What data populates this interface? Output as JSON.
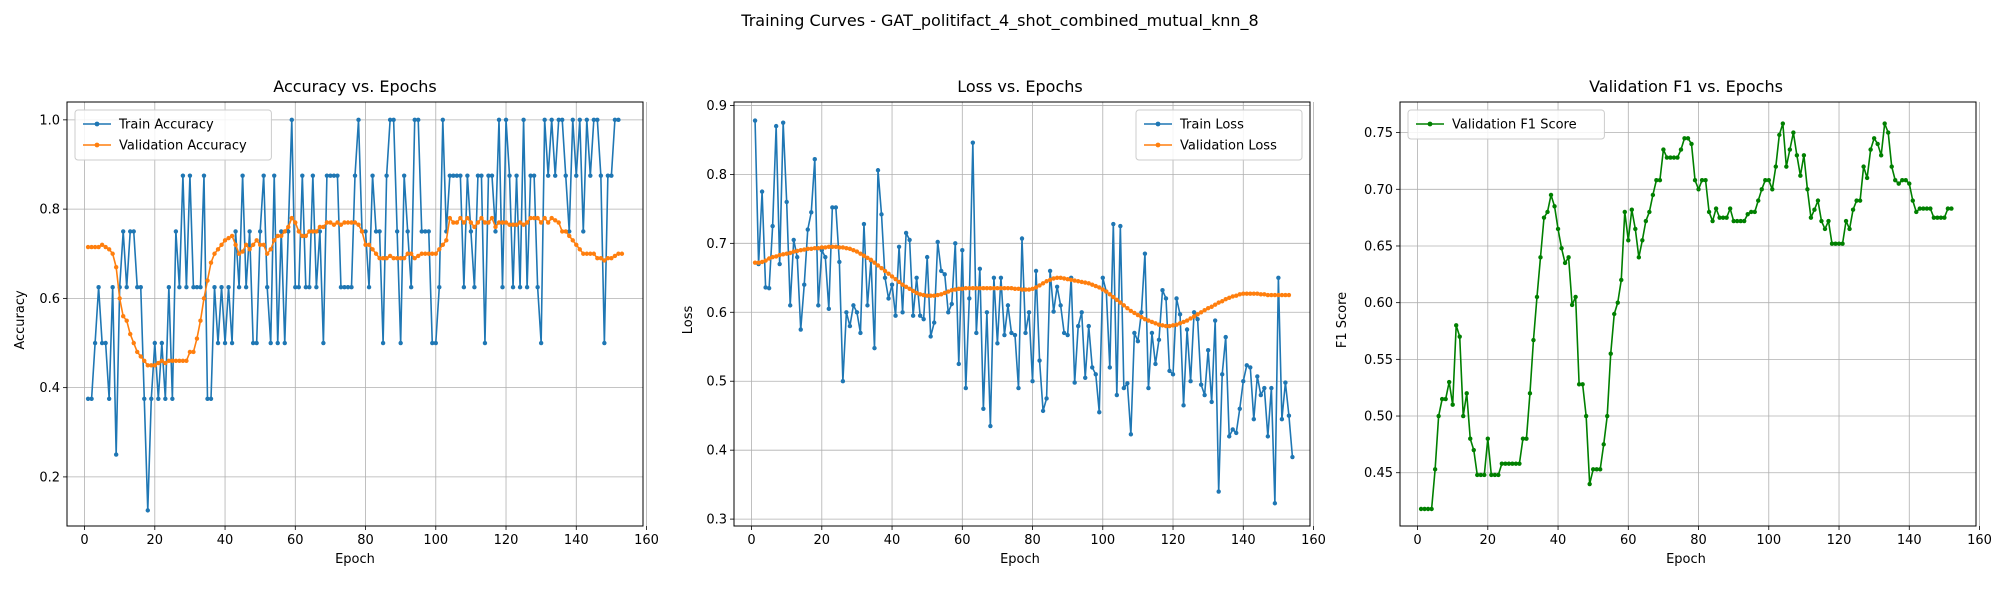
{
  "figure": {
    "suptitle": "Training Curves - GAT_politifact_4_shot_combined_mutual_knn_8"
  },
  "chart_data": [
    {
      "type": "line",
      "title": "Accuracy vs. Epochs",
      "xlabel": "Epoch",
      "ylabel": "Accuracy",
      "xlim": [
        -5,
        159
      ],
      "ylim": [
        0.09,
        1.04
      ],
      "xticks": [
        0,
        20,
        40,
        60,
        80,
        100,
        120,
        140,
        160
      ],
      "yticks": [
        0.2,
        0.4,
        0.6,
        0.8,
        1.0
      ],
      "ytick_labels": [
        "0.2",
        "0.4",
        "0.6",
        "0.8",
        "1.0"
      ],
      "grid": true,
      "legend_position": "upper-left",
      "x_start": 1,
      "series": [
        {
          "name": "Train Accuracy",
          "color": "#1f77b4",
          "values": [
            0.375,
            0.375,
            0.5,
            0.625,
            0.5,
            0.5,
            0.375,
            0.625,
            0.25,
            0.625,
            0.75,
            0.625,
            0.75,
            0.75,
            0.625,
            0.625,
            0.375,
            0.125,
            0.375,
            0.5,
            0.375,
            0.5,
            0.375,
            0.625,
            0.375,
            0.75,
            0.625,
            0.875,
            0.625,
            0.875,
            0.625,
            0.625,
            0.625,
            0.875,
            0.375,
            0.375,
            0.625,
            0.5,
            0.625,
            0.5,
            0.625,
            0.5,
            0.75,
            0.625,
            0.875,
            0.625,
            0.75,
            0.5,
            0.5,
            0.75,
            0.875,
            0.625,
            0.5,
            0.875,
            0.5,
            0.75,
            0.5,
            0.75,
            1.0,
            0.625,
            0.625,
            0.875,
            0.625,
            0.625,
            0.875,
            0.625,
            0.75,
            0.5,
            0.875,
            0.875,
            0.875,
            0.875,
            0.625,
            0.625,
            0.625,
            0.625,
            0.875,
            1.0,
            0.75,
            0.75,
            0.625,
            0.875,
            0.75,
            0.75,
            0.5,
            0.875,
            1.0,
            1.0,
            0.75,
            0.5,
            0.875,
            0.75,
            0.625,
            1.0,
            1.0,
            0.75,
            0.75,
            0.75,
            0.5,
            0.5,
            0.625,
            1.0,
            0.75,
            0.875,
            0.875,
            0.875,
            0.875,
            0.625,
            0.875,
            0.75,
            0.625,
            0.875,
            0.875,
            0.5,
            0.875,
            0.875,
            0.75,
            1.0,
            0.625,
            1.0,
            0.875,
            0.625,
            0.875,
            0.625,
            1.0,
            0.625,
            0.875,
            0.875,
            0.625,
            0.5,
            1.0,
            0.875,
            1.0,
            0.875,
            1.0,
            1.0,
            0.875,
            0.75,
            1.0,
            0.875,
            1.0,
            0.75,
            1.0,
            0.875,
            1.0,
            1.0,
            0.875,
            0.5,
            0.875,
            0.875,
            1.0,
            1.0
          ]
        },
        {
          "name": "Validation Accuracy",
          "color": "#ff7f0e",
          "values": [
            0.715,
            0.715,
            0.715,
            0.715,
            0.72,
            0.715,
            0.71,
            0.7,
            0.67,
            0.6,
            0.56,
            0.55,
            0.52,
            0.5,
            0.48,
            0.47,
            0.46,
            0.45,
            0.45,
            0.45,
            0.455,
            0.46,
            0.455,
            0.46,
            0.46,
            0.46,
            0.46,
            0.46,
            0.46,
            0.48,
            0.48,
            0.51,
            0.55,
            0.6,
            0.64,
            0.68,
            0.7,
            0.71,
            0.72,
            0.73,
            0.735,
            0.74,
            0.72,
            0.7,
            0.705,
            0.72,
            0.71,
            0.72,
            0.73,
            0.72,
            0.72,
            0.7,
            0.71,
            0.73,
            0.74,
            0.74,
            0.75,
            0.76,
            0.78,
            0.77,
            0.75,
            0.74,
            0.74,
            0.75,
            0.75,
            0.75,
            0.76,
            0.76,
            0.77,
            0.77,
            0.765,
            0.77,
            0.765,
            0.77,
            0.77,
            0.77,
            0.77,
            0.765,
            0.75,
            0.72,
            0.72,
            0.71,
            0.7,
            0.69,
            0.69,
            0.69,
            0.695,
            0.69,
            0.69,
            0.69,
            0.69,
            0.7,
            0.7,
            0.69,
            0.695,
            0.7,
            0.7,
            0.7,
            0.7,
            0.7,
            0.71,
            0.72,
            0.73,
            0.78,
            0.77,
            0.77,
            0.78,
            0.77,
            0.78,
            0.77,
            0.76,
            0.77,
            0.78,
            0.77,
            0.77,
            0.78,
            0.76,
            0.77,
            0.77,
            0.77,
            0.765,
            0.765,
            0.765,
            0.77,
            0.765,
            0.77,
            0.78,
            0.78,
            0.78,
            0.77,
            0.78,
            0.77,
            0.78,
            0.775,
            0.77,
            0.75,
            0.75,
            0.74,
            0.73,
            0.72,
            0.71,
            0.7,
            0.7,
            0.7,
            0.7,
            0.69,
            0.69,
            0.685,
            0.69,
            0.69,
            0.695,
            0.7,
            0.7
          ]
        }
      ]
    },
    {
      "type": "line",
      "title": "Loss vs. Epochs",
      "xlabel": "Epoch",
      "ylabel": "Loss",
      "xlim": [
        -5,
        159
      ],
      "ylim": [
        0.29,
        0.905
      ],
      "xticks": [
        0,
        20,
        40,
        60,
        80,
        100,
        120,
        140,
        160
      ],
      "yticks": [
        0.3,
        0.4,
        0.5,
        0.6,
        0.7,
        0.8,
        0.9
      ],
      "ytick_labels": [
        "0.3",
        "0.4",
        "0.5",
        "0.6",
        "0.7",
        "0.8",
        "0.9"
      ],
      "grid": true,
      "legend_position": "upper-right",
      "x_start": 1,
      "series": [
        {
          "name": "Train Loss",
          "color": "#1f77b4",
          "values": [
            0.878,
            0.67,
            0.775,
            0.636,
            0.635,
            0.725,
            0.87,
            0.67,
            0.875,
            0.76,
            0.61,
            0.705,
            0.68,
            0.575,
            0.64,
            0.72,
            0.745,
            0.822,
            0.61,
            0.69,
            0.68,
            0.605,
            0.752,
            0.752,
            0.673,
            0.5,
            0.6,
            0.58,
            0.61,
            0.6,
            0.57,
            0.728,
            0.61,
            0.675,
            0.548,
            0.806,
            0.742,
            0.65,
            0.62,
            0.64,
            0.595,
            0.695,
            0.6,
            0.715,
            0.705,
            0.595,
            0.65,
            0.595,
            0.59,
            0.68,
            0.565,
            0.585,
            0.702,
            0.66,
            0.655,
            0.6,
            0.612,
            0.7,
            0.525,
            0.69,
            0.49,
            0.62,
            0.846,
            0.57,
            0.663,
            0.46,
            0.6,
            0.435,
            0.65,
            0.555,
            0.65,
            0.567,
            0.61,
            0.57,
            0.567,
            0.49,
            0.707,
            0.57,
            0.6,
            0.5,
            0.66,
            0.53,
            0.457,
            0.475,
            0.66,
            0.601,
            0.637,
            0.61,
            0.57,
            0.567,
            0.65,
            0.498,
            0.58,
            0.6,
            0.505,
            0.58,
            0.52,
            0.51,
            0.455,
            0.65,
            0.63,
            0.52,
            0.728,
            0.48,
            0.725,
            0.49,
            0.497,
            0.423,
            0.57,
            0.558,
            0.6,
            0.685,
            0.49,
            0.57,
            0.525,
            0.56,
            0.632,
            0.62,
            0.515,
            0.51,
            0.62,
            0.597,
            0.465,
            0.575,
            0.5,
            0.6,
            0.59,
            0.495,
            0.48,
            0.545,
            0.47,
            0.588,
            0.34,
            0.51,
            0.564,
            0.42,
            0.43,
            0.425,
            0.46,
            0.5,
            0.523,
            0.52,
            0.445,
            0.507,
            0.48,
            0.49,
            0.42,
            0.49,
            0.323,
            0.65,
            0.445,
            0.498,
            0.45,
            0.39
          ]
        },
        {
          "name": "Validation Loss",
          "color": "#ff7f0e",
          "values": [
            0.672,
            0.672,
            0.673,
            0.675,
            0.678,
            0.68,
            0.681,
            0.683,
            0.684,
            0.685,
            0.686,
            0.688,
            0.689,
            0.69,
            0.691,
            0.692,
            0.692,
            0.693,
            0.693,
            0.694,
            0.694,
            0.695,
            0.695,
            0.695,
            0.694,
            0.694,
            0.693,
            0.692,
            0.69,
            0.688,
            0.685,
            0.682,
            0.679,
            0.676,
            0.672,
            0.668,
            0.664,
            0.66,
            0.656,
            0.652,
            0.648,
            0.644,
            0.64,
            0.637,
            0.634,
            0.631,
            0.628,
            0.626,
            0.625,
            0.624,
            0.624,
            0.624,
            0.625,
            0.626,
            0.628,
            0.63,
            0.632,
            0.633,
            0.634,
            0.634,
            0.635,
            0.635,
            0.635,
            0.635,
            0.635,
            0.635,
            0.635,
            0.635,
            0.635,
            0.635,
            0.635,
            0.635,
            0.635,
            0.635,
            0.634,
            0.634,
            0.633,
            0.633,
            0.633,
            0.634,
            0.636,
            0.639,
            0.642,
            0.645,
            0.647,
            0.649,
            0.65,
            0.65,
            0.649,
            0.648,
            0.647,
            0.646,
            0.645,
            0.644,
            0.643,
            0.642,
            0.64,
            0.638,
            0.636,
            0.633,
            0.63,
            0.626,
            0.622,
            0.618,
            0.614,
            0.61,
            0.606,
            0.602,
            0.599,
            0.596,
            0.593,
            0.59,
            0.588,
            0.586,
            0.584,
            0.582,
            0.581,
            0.58,
            0.58,
            0.581,
            0.582,
            0.584,
            0.586,
            0.588,
            0.591,
            0.594,
            0.597,
            0.6,
            0.603,
            0.606,
            0.608,
            0.611,
            0.614,
            0.616,
            0.619,
            0.621,
            0.623,
            0.624,
            0.626,
            0.627,
            0.627,
            0.627,
            0.627,
            0.627,
            0.626,
            0.626,
            0.625,
            0.625,
            0.625,
            0.625,
            0.625,
            0.625,
            0.625
          ]
        }
      ]
    },
    {
      "type": "line",
      "title": "Validation F1 vs. Epochs",
      "xlabel": "Epoch",
      "ylabel": "F1 Score",
      "xlim": [
        -5,
        159
      ],
      "ylim": [
        0.403,
        0.777
      ],
      "xticks": [
        0,
        20,
        40,
        60,
        80,
        100,
        120,
        140,
        160
      ],
      "yticks": [
        0.45,
        0.5,
        0.55,
        0.6,
        0.65,
        0.7,
        0.75
      ],
      "ytick_labels": [
        "0.45",
        "0.50",
        "0.55",
        "0.60",
        "0.65",
        "0.70",
        "0.75"
      ],
      "grid": true,
      "legend_position": "upper-left",
      "x_start": 1,
      "series": [
        {
          "name": "Validation F1 Score",
          "color": "#008000",
          "values": [
            0.418,
            0.418,
            0.418,
            0.418,
            0.453,
            0.5,
            0.515,
            0.515,
            0.53,
            0.51,
            0.58,
            0.57,
            0.5,
            0.52,
            0.48,
            0.47,
            0.448,
            0.448,
            0.448,
            0.48,
            0.448,
            0.448,
            0.448,
            0.458,
            0.458,
            0.458,
            0.458,
            0.458,
            0.458,
            0.48,
            0.48,
            0.52,
            0.567,
            0.605,
            0.64,
            0.675,
            0.68,
            0.695,
            0.685,
            0.665,
            0.648,
            0.635,
            0.64,
            0.598,
            0.605,
            0.528,
            0.528,
            0.5,
            0.44,
            0.453,
            0.453,
            0.453,
            0.475,
            0.5,
            0.555,
            0.59,
            0.6,
            0.62,
            0.68,
            0.655,
            0.682,
            0.665,
            0.64,
            0.655,
            0.672,
            0.68,
            0.695,
            0.708,
            0.708,
            0.735,
            0.728,
            0.728,
            0.728,
            0.728,
            0.735,
            0.745,
            0.745,
            0.74,
            0.708,
            0.7,
            0.708,
            0.708,
            0.68,
            0.672,
            0.683,
            0.675,
            0.675,
            0.675,
            0.683,
            0.672,
            0.672,
            0.672,
            0.672,
            0.678,
            0.68,
            0.68,
            0.69,
            0.7,
            0.708,
            0.708,
            0.7,
            0.72,
            0.748,
            0.758,
            0.72,
            0.735,
            0.75,
            0.73,
            0.712,
            0.73,
            0.7,
            0.675,
            0.682,
            0.69,
            0.672,
            0.665,
            0.672,
            0.652,
            0.652,
            0.652,
            0.652,
            0.672,
            0.665,
            0.682,
            0.69,
            0.69,
            0.72,
            0.71,
            0.735,
            0.745,
            0.74,
            0.73,
            0.758,
            0.75,
            0.72,
            0.708,
            0.705,
            0.708,
            0.708,
            0.705,
            0.69,
            0.68,
            0.683,
            0.683,
            0.683,
            0.683,
            0.675,
            0.675,
            0.675,
            0.675,
            0.683,
            0.683
          ]
        }
      ]
    }
  ]
}
